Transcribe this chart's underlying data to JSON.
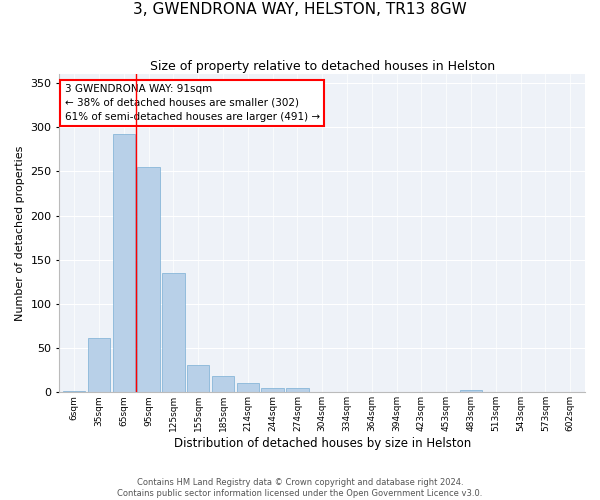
{
  "title": "3, GWENDRONA WAY, HELSTON, TR13 8GW",
  "subtitle": "Size of property relative to detached houses in Helston",
  "xlabel": "Distribution of detached houses by size in Helston",
  "ylabel": "Number of detached properties",
  "categories": [
    "6sqm",
    "35sqm",
    "65sqm",
    "95sqm",
    "125sqm",
    "155sqm",
    "185sqm",
    "214sqm",
    "244sqm",
    "274sqm",
    "304sqm",
    "334sqm",
    "364sqm",
    "394sqm",
    "423sqm",
    "453sqm",
    "483sqm",
    "513sqm",
    "543sqm",
    "573sqm",
    "602sqm"
  ],
  "values": [
    2,
    62,
    292,
    255,
    135,
    31,
    18,
    11,
    5,
    5,
    0,
    0,
    0,
    0,
    0,
    0,
    3,
    0,
    0,
    0,
    0
  ],
  "bar_color": "#b8d0e8",
  "bar_edge_color": "#7aafd4",
  "vline_x": 2.5,
  "vline_color": "red",
  "annotation_text": "3 GWENDRONA WAY: 91sqm\n← 38% of detached houses are smaller (302)\n61% of semi-detached houses are larger (491) →",
  "annotation_box_color": "white",
  "annotation_box_edge": "red",
  "ylim": [
    0,
    360
  ],
  "yticks": [
    0,
    50,
    100,
    150,
    200,
    250,
    300,
    350
  ],
  "bg_color": "#eef2f8",
  "footer": "Contains HM Land Registry data © Crown copyright and database right 2024.\nContains public sector information licensed under the Open Government Licence v3.0.",
  "title_fontsize": 11,
  "subtitle_fontsize": 9,
  "annot_fontsize": 7.5
}
